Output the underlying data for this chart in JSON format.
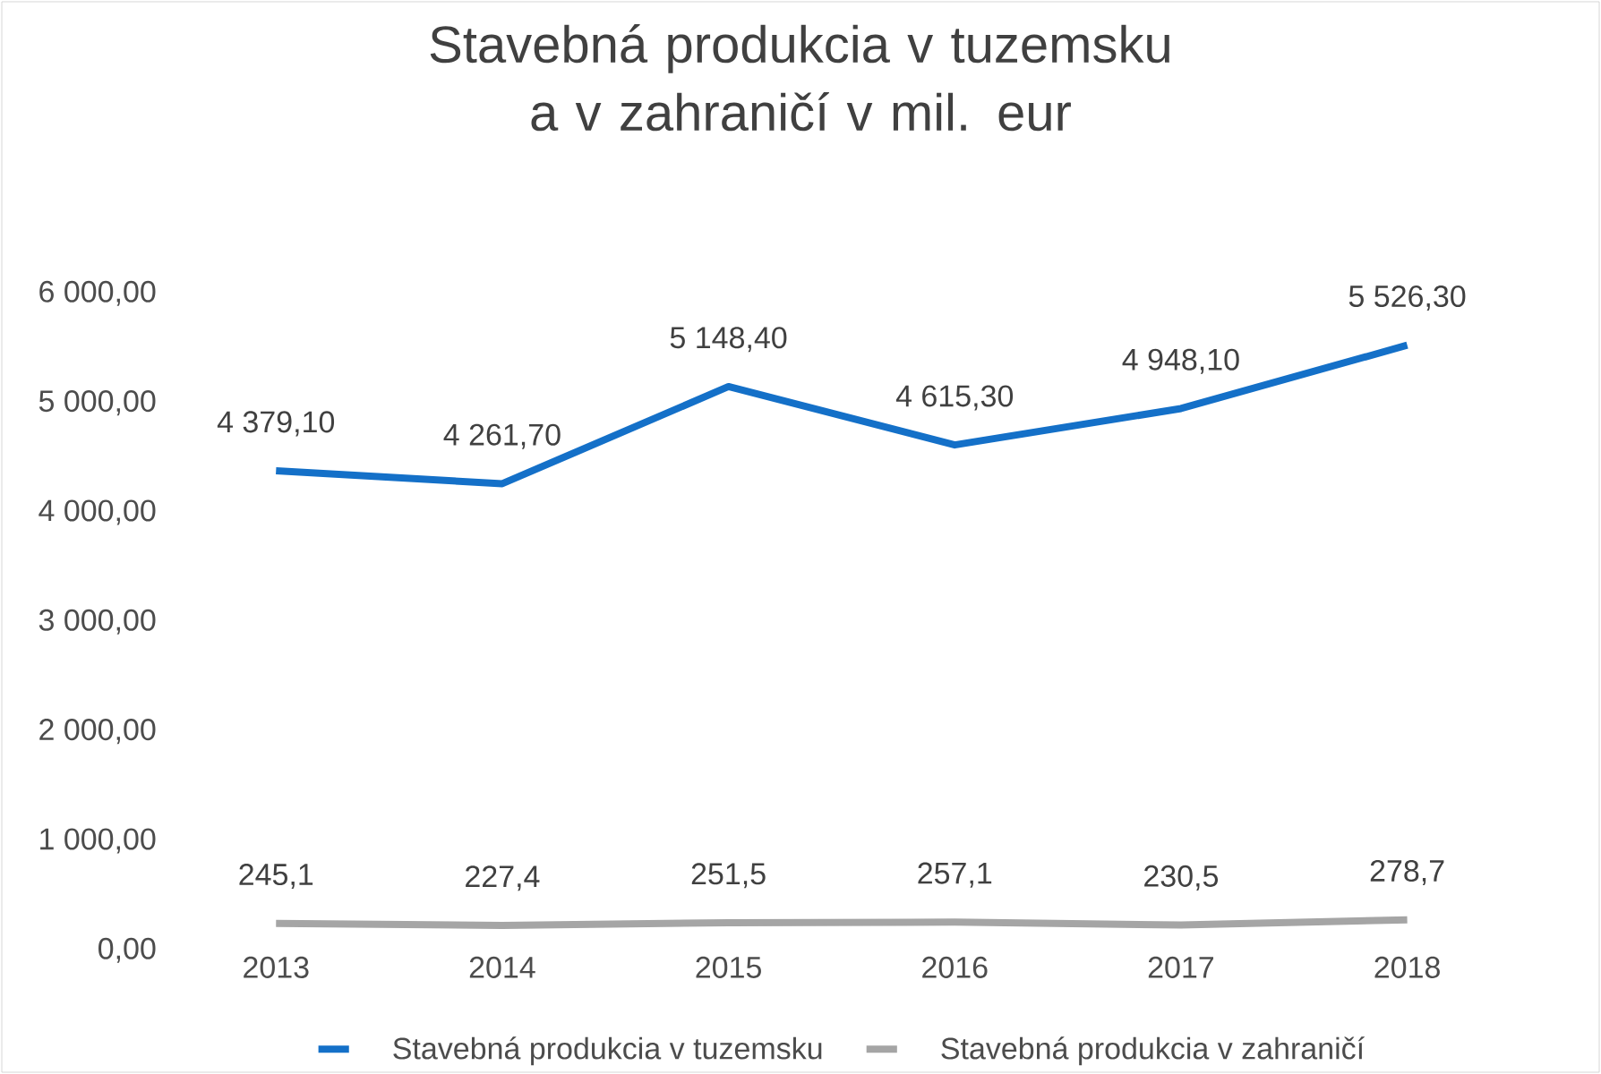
{
  "chart_data": {
    "type": "line",
    "title": "Stavebná produkcia v tuzemsku a v zahraničí v mil. eur",
    "categories": [
      "2013",
      "2014",
      "2015",
      "2016",
      "2017",
      "2018"
    ],
    "series": [
      {
        "name": "Stavebná produkcia v tuzemsku",
        "color": "#1470c8",
        "values": [
          4379.1,
          4261.7,
          5148.4,
          4615.3,
          4948.1,
          5526.3
        ],
        "value_labels": [
          "4 379,10",
          "4 261,70",
          "5 148,40",
          "4 615,30",
          "4 948,10",
          "5 526,30"
        ]
      },
      {
        "name": "Stavebná produkcia v zahraničí",
        "color": "#a5a5a5",
        "values": [
          245.1,
          227.4,
          251.5,
          257.1,
          230.5,
          278.7
        ],
        "value_labels": [
          "245,1",
          "227,4",
          "251,5",
          "257,1",
          "230,5",
          "278,7"
        ]
      }
    ],
    "ylim": [
      0,
      6000
    ],
    "yticks": [
      {
        "value": 0,
        "label": "0,00"
      },
      {
        "value": 1000,
        "label": "1 000,00"
      },
      {
        "value": 2000,
        "label": "2 000,00"
      },
      {
        "value": 3000,
        "label": "3 000,00"
      },
      {
        "value": 4000,
        "label": "4 000,00"
      },
      {
        "value": 5000,
        "label": "5 000,00"
      },
      {
        "value": 6000,
        "label": "6 000,00"
      }
    ],
    "legend": "bottom",
    "marker": "none",
    "line_style": "solid"
  }
}
